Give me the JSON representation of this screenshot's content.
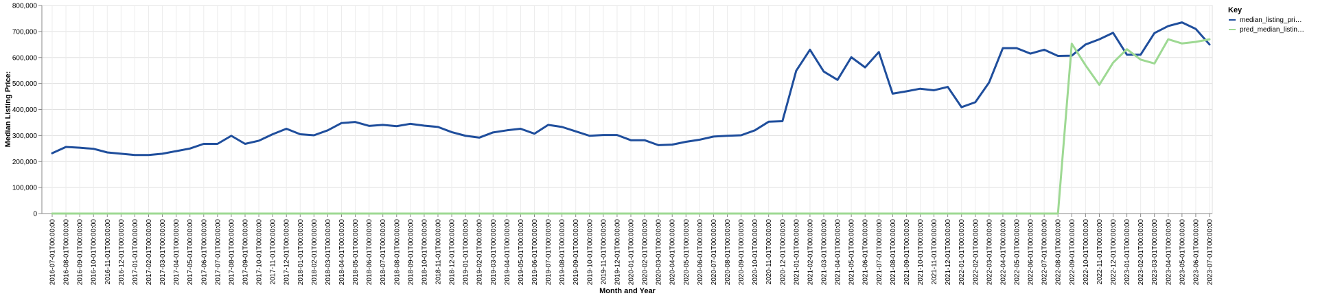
{
  "chart_data": {
    "type": "line",
    "xlabel": "Month and Year",
    "ylabel": "Median Listing Price:",
    "ylim": [
      0,
      800000
    ],
    "y_ticks": [
      "0",
      "100,000",
      "200,000",
      "300,000",
      "400,000",
      "500,000",
      "600,000",
      "700,000",
      "800,000"
    ],
    "grid": true,
    "legend": {
      "title": "Key",
      "position": "right",
      "labels": [
        "median_listing_pri…",
        "pred_median_listin…"
      ]
    },
    "categories": [
      "2016-07-01T00:00:00",
      "2016-08-01T00:00:00",
      "2016-09-01T00:00:00",
      "2016-10-01T00:00:00",
      "2016-11-01T00:00:00",
      "2016-12-01T00:00:00",
      "2017-01-01T00:00:00",
      "2017-02-01T00:00:00",
      "2017-03-01T00:00:00",
      "2017-04-01T00:00:00",
      "2017-05-01T00:00:00",
      "2017-06-01T00:00:00",
      "2017-07-01T00:00:00",
      "2017-08-01T00:00:00",
      "2017-09-01T00:00:00",
      "2017-10-01T00:00:00",
      "2017-11-01T00:00:00",
      "2017-12-01T00:00:00",
      "2018-01-01T00:00:00",
      "2018-02-01T00:00:00",
      "2018-03-01T00:00:00",
      "2018-04-01T00:00:00",
      "2018-05-01T00:00:00",
      "2018-06-01T00:00:00",
      "2018-07-01T00:00:00",
      "2018-08-01T00:00:00",
      "2018-09-01T00:00:00",
      "2018-10-01T00:00:00",
      "2018-11-01T00:00:00",
      "2018-12-01T00:00:00",
      "2019-01-01T00:00:00",
      "2019-02-01T00:00:00",
      "2019-03-01T00:00:00",
      "2019-04-01T00:00:00",
      "2019-05-01T00:00:00",
      "2019-06-01T00:00:00",
      "2019-07-01T00:00:00",
      "2019-08-01T00:00:00",
      "2019-09-01T00:00:00",
      "2019-10-01T00:00:00",
      "2019-11-01T00:00:00",
      "2019-12-01T00:00:00",
      "2020-01-01T00:00:00",
      "2020-02-01T00:00:00",
      "2020-03-01T00:00:00",
      "2020-04-01T00:00:00",
      "2020-05-01T00:00:00",
      "2020-06-01T00:00:00",
      "2020-07-01T00:00:00",
      "2020-08-01T00:00:00",
      "2020-09-01T00:00:00",
      "2020-10-01T00:00:00",
      "2020-11-01T00:00:00",
      "2020-12-01T00:00:00",
      "2021-01-01T00:00:00",
      "2021-02-01T00:00:00",
      "2021-03-01T00:00:00",
      "2021-04-01T00:00:00",
      "2021-05-01T00:00:00",
      "2021-06-01T00:00:00",
      "2021-07-01T00:00:00",
      "2021-08-01T00:00:00",
      "2021-09-01T00:00:00",
      "2021-10-01T00:00:00",
      "2021-11-01T00:00:00",
      "2021-12-01T00:00:00",
      "2022-01-01T00:00:00",
      "2022-02-01T00:00:00",
      "2022-03-01T00:00:00",
      "2022-04-01T00:00:00",
      "2022-05-01T00:00:00",
      "2022-06-01T00:00:00",
      "2022-07-01T00:00:00",
      "2022-08-01T00:00:00",
      "2022-09-01T00:00:00",
      "2022-10-01T00:00:00",
      "2022-11-01T00:00:00",
      "2022-12-01T00:00:00",
      "2023-01-01T00:00:00",
      "2023-02-01T00:00:00",
      "2023-03-01T00:00:00",
      "2023-04-01T00:00:00",
      "2023-05-01T00:00:00",
      "2023-06-01T00:00:00",
      "2023-07-01T00:00:00"
    ],
    "series": [
      {
        "name": "median_listing_pri…",
        "color": "#1f4e9c",
        "values": [
          232000,
          256000,
          253000,
          249000,
          235000,
          230000,
          225000,
          225000,
          230000,
          240000,
          250000,
          268000,
          268000,
          299000,
          268000,
          280000,
          305000,
          326000,
          305000,
          301000,
          320000,
          348000,
          352000,
          337000,
          341000,
          336000,
          345000,
          338000,
          333000,
          313000,
          299000,
          292000,
          312000,
          320000,
          326000,
          307000,
          341000,
          333000,
          316000,
          299000,
          302000,
          302000,
          282000,
          282000,
          263000,
          265000,
          276000,
          284000,
          296000,
          299000,
          301000,
          320000,
          353000,
          355000,
          549000,
          630000,
          546000,
          514000,
          601000,
          562000,
          621000,
          461000,
          470000,
          480000,
          474000,
          487000,
          409000,
          428000,
          504000,
          636000,
          636000,
          615000,
          630000,
          606000,
          607000,
          650000,
          670000,
          695000,
          611000,
          611000,
          694000,
          721000,
          735000,
          710000,
          650000
        ]
      },
      {
        "name": "pred_median_listin…",
        "color": "#9ed993",
        "values": [
          0,
          0,
          0,
          0,
          0,
          0,
          0,
          0,
          0,
          0,
          0,
          0,
          0,
          0,
          0,
          0,
          0,
          0,
          0,
          0,
          0,
          0,
          0,
          0,
          0,
          0,
          0,
          0,
          0,
          0,
          0,
          0,
          0,
          0,
          0,
          0,
          0,
          0,
          0,
          0,
          0,
          0,
          0,
          0,
          0,
          0,
          0,
          0,
          0,
          0,
          0,
          0,
          0,
          0,
          0,
          0,
          0,
          0,
          0,
          0,
          0,
          0,
          0,
          0,
          0,
          0,
          0,
          0,
          0,
          0,
          0,
          0,
          0,
          0,
          653000,
          570000,
          495000,
          580000,
          632000,
          592000,
          577000,
          670000,
          654000,
          660000,
          670000
        ]
      }
    ]
  }
}
